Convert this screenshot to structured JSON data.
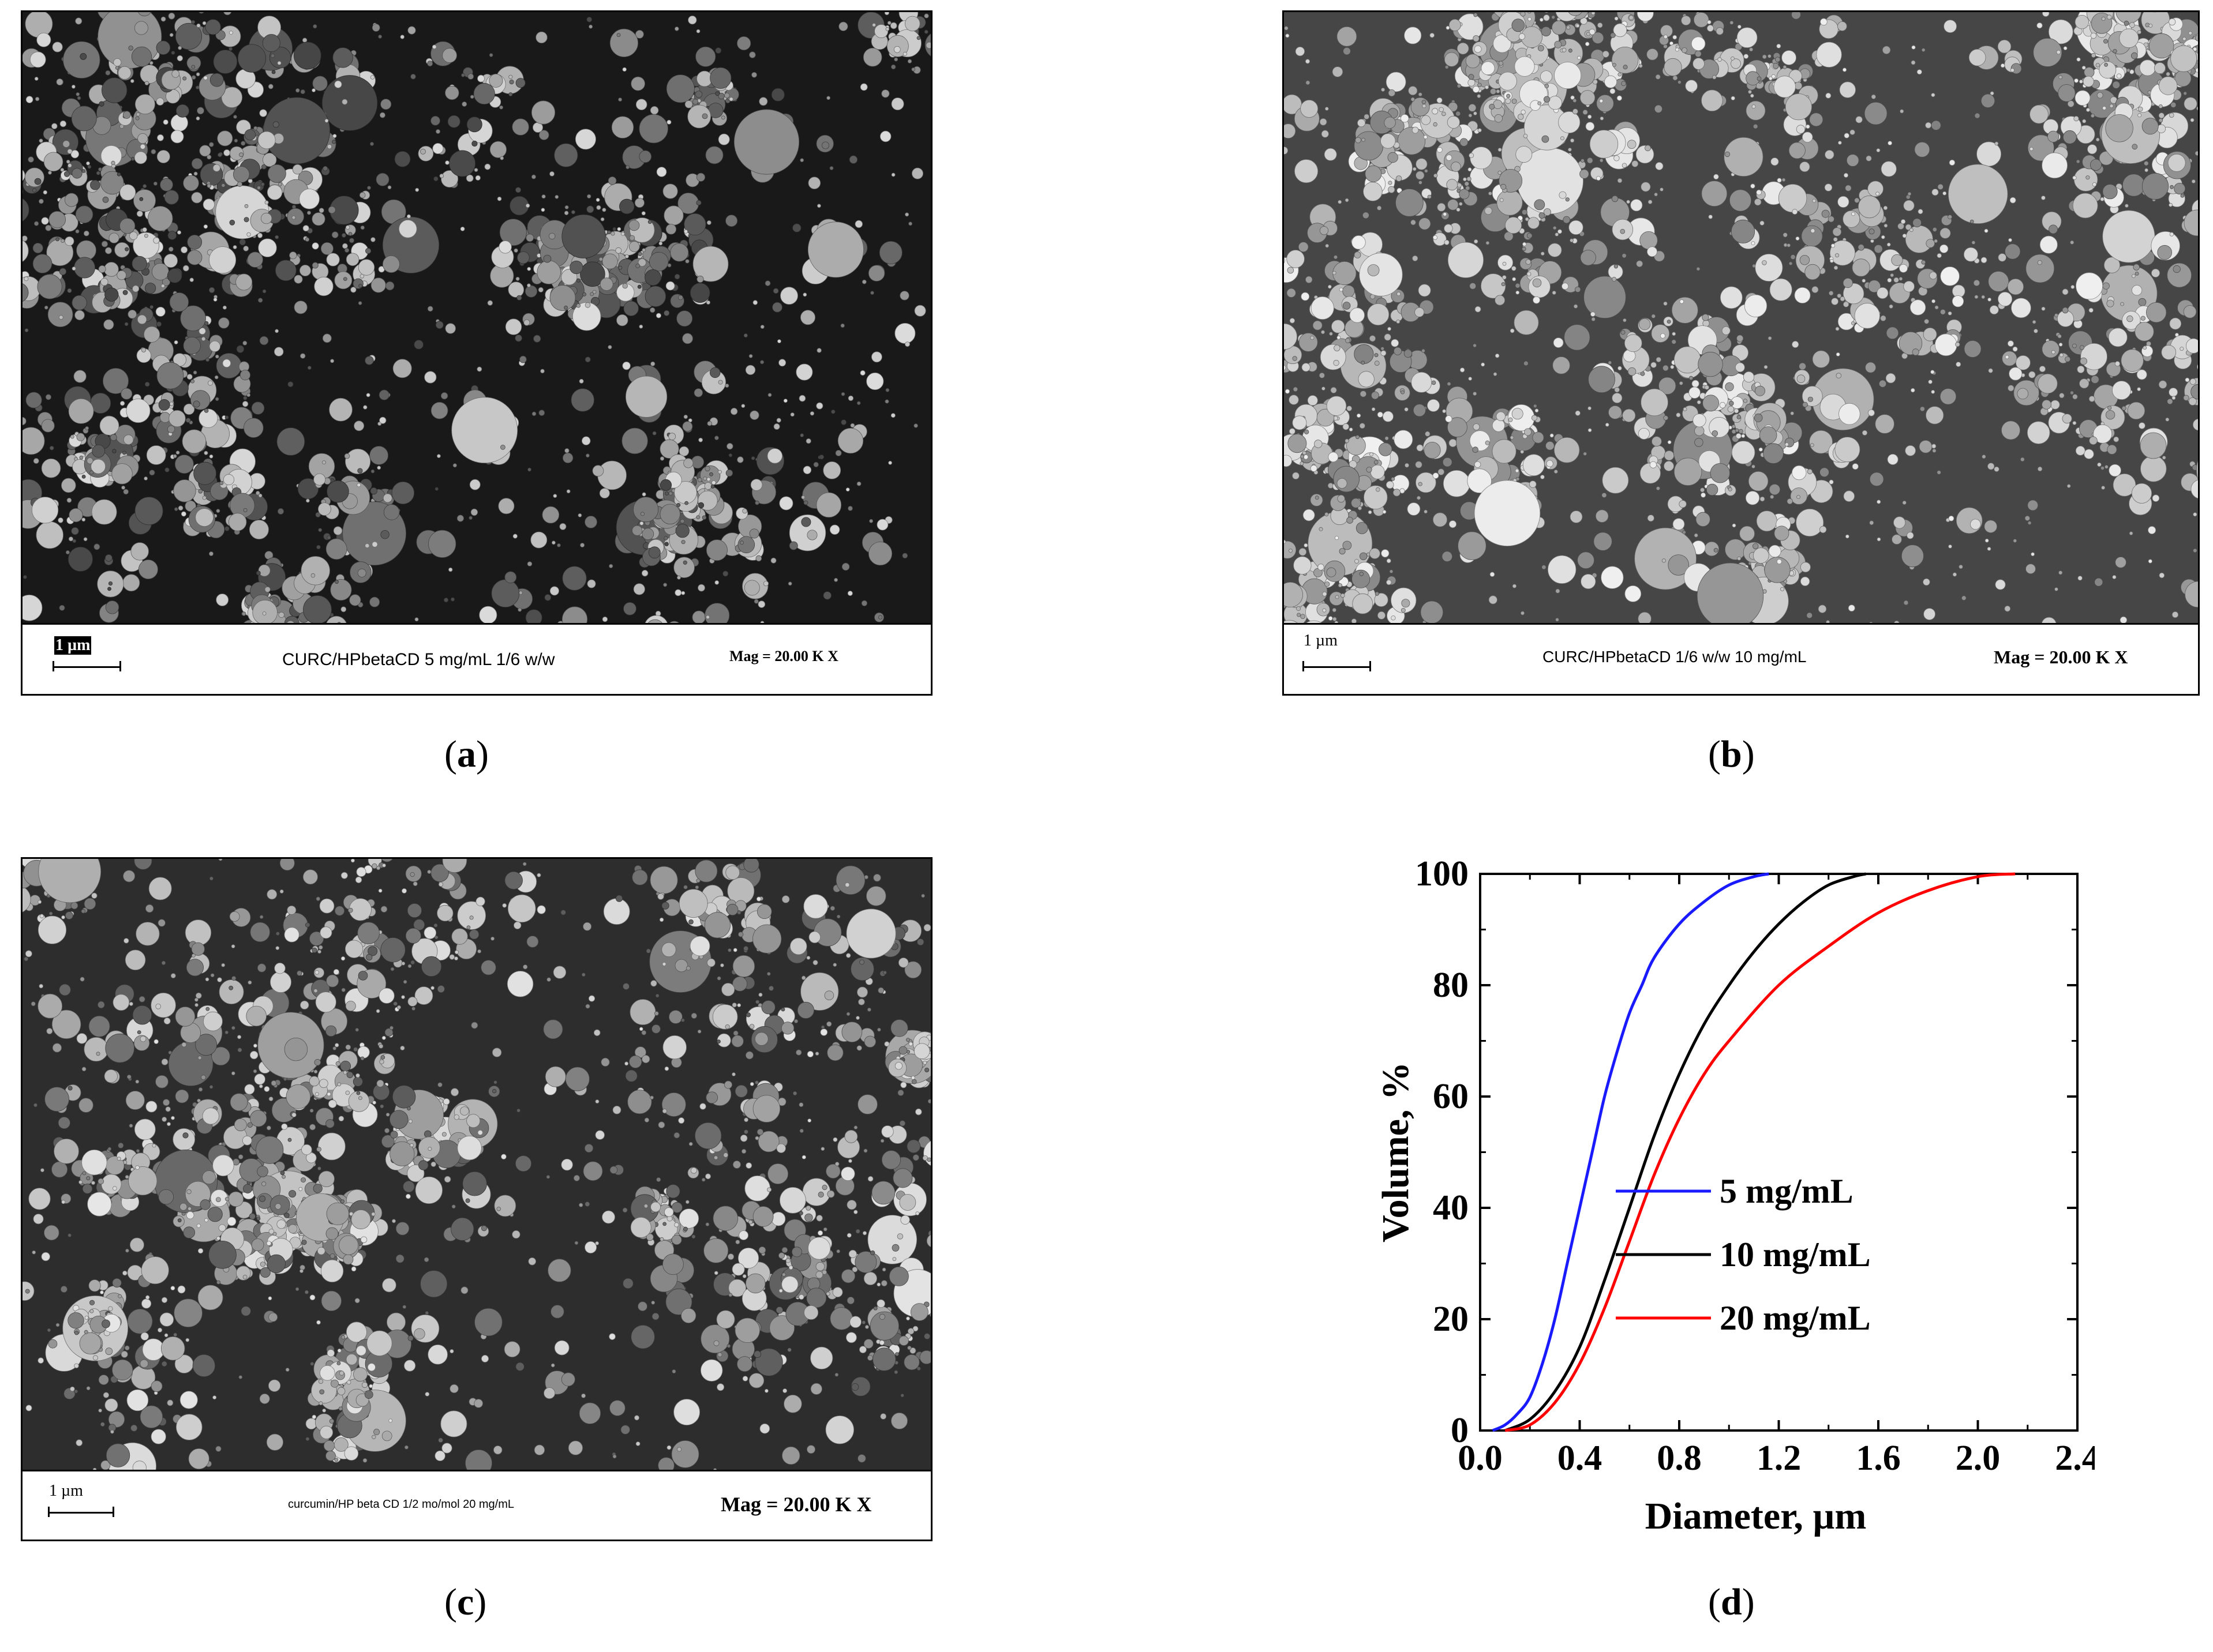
{
  "panels": [
    {
      "id": "a",
      "label": "a",
      "sem": {
        "scale_label": "1 µm",
        "caption": "CURC/HPbetaCD 5 mg/mL 1/6 w/w",
        "magnification": "Mag =  20.00 K X",
        "tone": "dark"
      }
    },
    {
      "id": "b",
      "label": "b",
      "sem": {
        "scale_label": "1 µm",
        "caption": "CURC/HPbetaCD 1/6 w/w 10 mg/mL",
        "magnification": "Mag =  20.00 K X",
        "tone": "bright"
      }
    },
    {
      "id": "c",
      "label": "c",
      "sem": {
        "scale_label": "1 µm",
        "caption": "curcumin/HP beta CD 1/2 mo/mol  20 mg/mL",
        "magnification": "Mag =  20.00 K X",
        "tone": "mixed"
      }
    },
    {
      "id": "d",
      "label": "d"
    }
  ],
  "chart_data": {
    "type": "line",
    "title": "",
    "xlabel": "Diameter, µm",
    "ylabel": "Volume, %",
    "xlim": [
      0.0,
      2.4
    ],
    "ylim": [
      0,
      100
    ],
    "xticks": [
      "0.0",
      "0.4",
      "0.8",
      "1.2",
      "1.6",
      "2.0",
      "2.4"
    ],
    "yticks": [
      "0",
      "20",
      "40",
      "60",
      "80",
      "100"
    ],
    "grid": false,
    "legend_position": "center-right",
    "series": [
      {
        "name": "5 mg/mL",
        "color": "#1a1aff",
        "x": [
          0.05,
          0.1,
          0.15,
          0.2,
          0.25,
          0.3,
          0.35,
          0.4,
          0.45,
          0.5,
          0.55,
          0.6,
          0.65,
          0.7,
          0.8,
          0.9,
          1.0,
          1.1,
          1.16
        ],
        "y": [
          0,
          1,
          3,
          6,
          12,
          20,
          30,
          40,
          50,
          60,
          68,
          75,
          80,
          85,
          91,
          95,
          98,
          99.5,
          100
        ]
      },
      {
        "name": "10 mg/mL",
        "color": "#000000",
        "x": [
          0.1,
          0.2,
          0.3,
          0.4,
          0.5,
          0.6,
          0.7,
          0.8,
          0.9,
          1.0,
          1.1,
          1.2,
          1.3,
          1.4,
          1.5,
          1.55
        ],
        "y": [
          0,
          2,
          7,
          15,
          27,
          40,
          53,
          64,
          73,
          80,
          86,
          91,
          95,
          98,
          99.5,
          100
        ]
      },
      {
        "name": "20 mg/mL",
        "color": "#ff0000",
        "x": [
          0.1,
          0.2,
          0.3,
          0.4,
          0.5,
          0.6,
          0.7,
          0.8,
          0.9,
          1.0,
          1.2,
          1.4,
          1.6,
          1.8,
          2.0,
          2.15
        ],
        "y": [
          0,
          1,
          5,
          12,
          22,
          34,
          46,
          56,
          64,
          70,
          80,
          87,
          93,
          97,
          99.5,
          100
        ]
      }
    ]
  }
}
